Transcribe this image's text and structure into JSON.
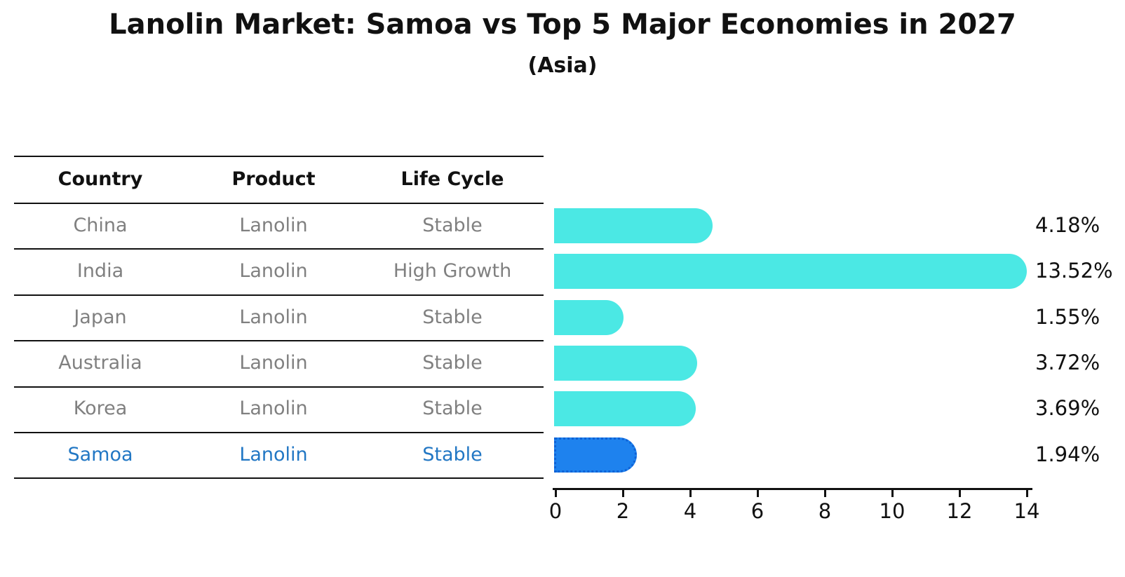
{
  "title": "Lanolin Market: Samoa vs Top 5 Major Economies in 2027",
  "subtitle": "(Asia)",
  "table": {
    "headers": [
      "Country",
      "Product",
      "Life Cycle"
    ],
    "rows": [
      {
        "country": "China",
        "product": "Lanolin",
        "life_cycle": "Stable",
        "highlighted": false
      },
      {
        "country": "India",
        "product": "Lanolin",
        "life_cycle": "High Growth",
        "highlighted": false
      },
      {
        "country": "Japan",
        "product": "Lanolin",
        "life_cycle": "Stable",
        "highlighted": false
      },
      {
        "country": "Australia",
        "product": "Lanolin",
        "life_cycle": "Stable",
        "highlighted": false
      },
      {
        "country": "Korea",
        "product": "Lanolin",
        "life_cycle": "Stable",
        "highlighted": false
      },
      {
        "country": "Samoa",
        "product": "Lanolin",
        "life_cycle": "Stable",
        "highlighted": true
      }
    ]
  },
  "chart_data": {
    "type": "bar",
    "orientation": "horizontal",
    "title": "Lanolin Market: Samoa vs Top 5 Major Economies in 2027",
    "subtitle": "(Asia)",
    "categories": [
      "China",
      "India",
      "Japan",
      "Australia",
      "Korea",
      "Samoa"
    ],
    "values": [
      4.18,
      13.52,
      1.55,
      3.72,
      3.69,
      1.94
    ],
    "value_labels": [
      "4.18%",
      "13.52%",
      "1.55%",
      "3.72%",
      "3.69%",
      "1.94%"
    ],
    "xlabel": "",
    "ylabel": "",
    "xlim": [
      0,
      14
    ],
    "x_ticks": [
      0,
      2,
      4,
      6,
      8,
      10,
      12,
      14
    ],
    "grid": false,
    "legend": "none",
    "highlight_index": 5
  },
  "colors": {
    "bar": "#4be8e4",
    "highlight_bar": "#1e82ee",
    "highlight_bar_border": "#0f62d6",
    "row_text": "#808080",
    "highlight_text": "#2277c4",
    "ink": "#111111"
  }
}
